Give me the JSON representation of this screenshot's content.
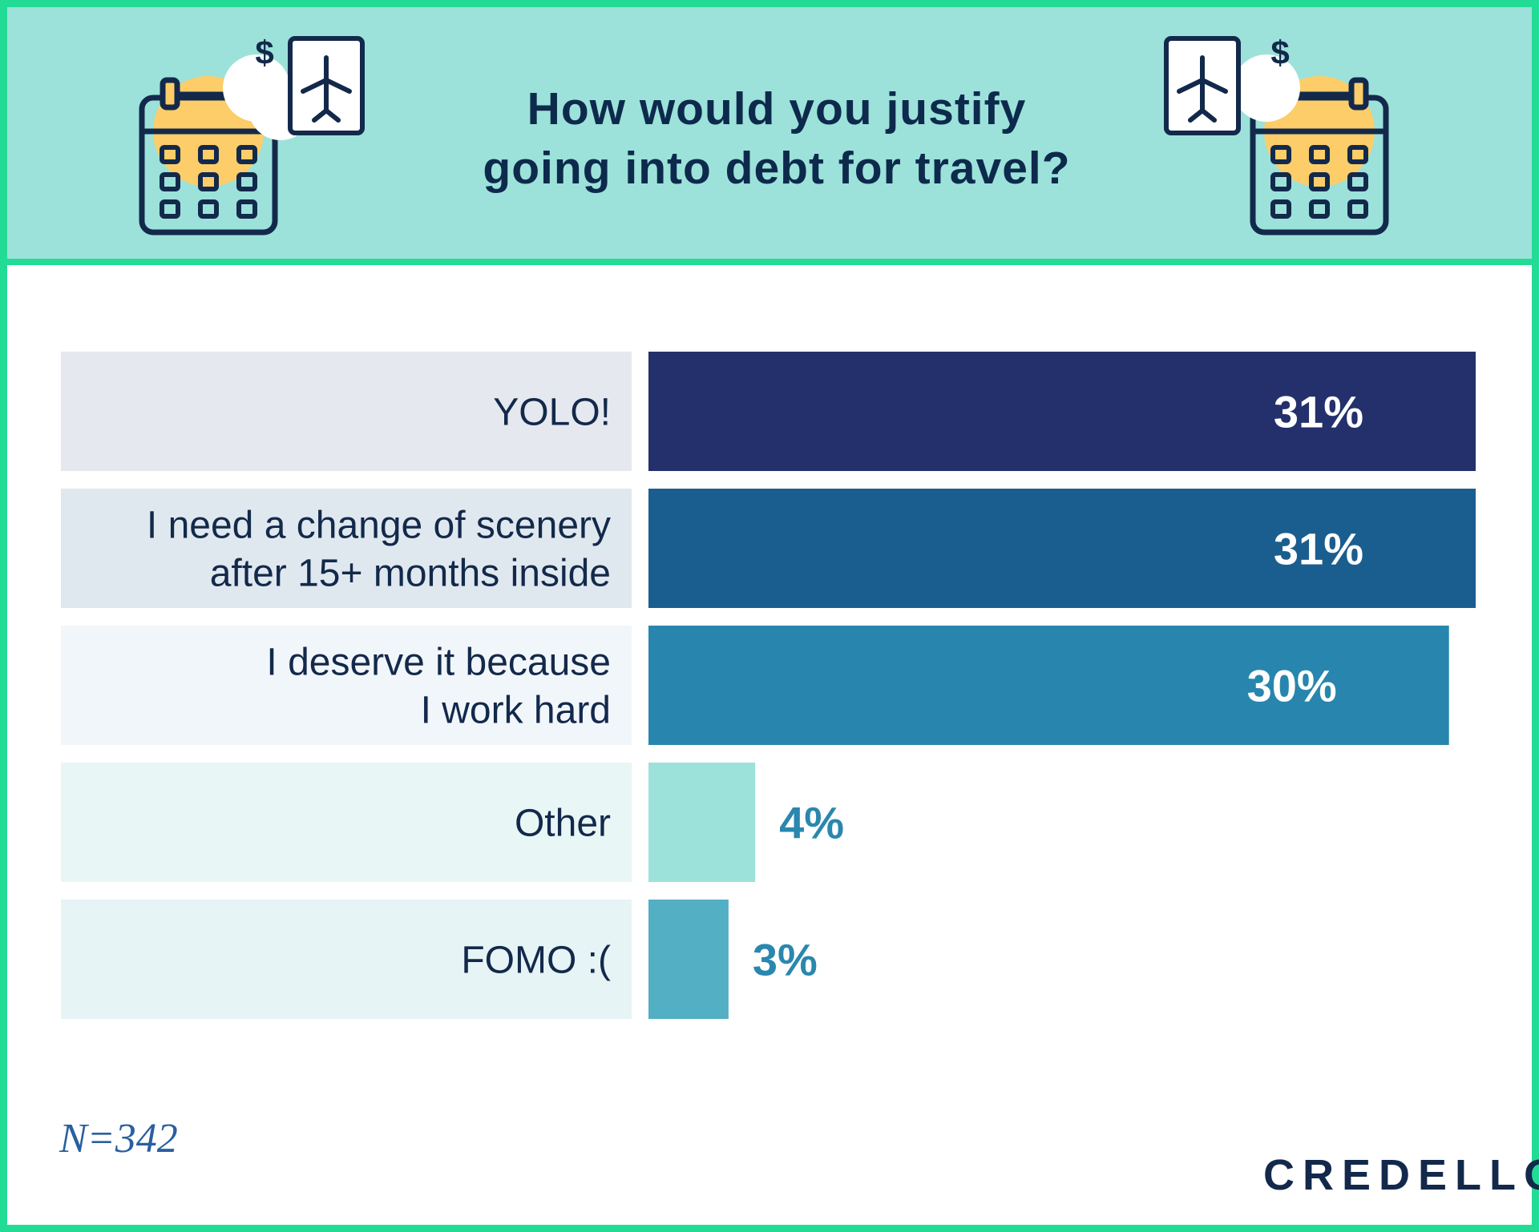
{
  "title": "How would you justify\ngoing into debt for travel?",
  "icons": {
    "left": [
      "calendar-icon",
      "dollar-icon",
      "airplane-icon"
    ],
    "right": [
      "calendar-icon",
      "dollar-icon",
      "airplane-icon"
    ]
  },
  "colors": {
    "header_bg": "#9ce2da",
    "frame_accent": "#22dc96",
    "navy": "#0d2a4c",
    "calendar_fill": "#fccd68"
  },
  "chart_data": {
    "type": "bar",
    "orientation": "horizontal",
    "title": "How would you justify going into debt for travel?",
    "categories": [
      "YOLO!",
      "I need a change of scenery after 15+ months inside",
      "I deserve it because I work hard",
      "Other",
      "FOMO :("
    ],
    "category_lines": [
      [
        "YOLO!"
      ],
      [
        "I need a change of scenery",
        "after 15+ months inside"
      ],
      [
        "I deserve it because",
        "I work hard"
      ],
      [
        "Other"
      ],
      [
        "FOMO :("
      ]
    ],
    "values": [
      31,
      31,
      30,
      4,
      3
    ],
    "value_labels": [
      "31%",
      "31%",
      "30%",
      "4%",
      "3%"
    ],
    "unit": "%",
    "bar_colors": [
      "#23306b",
      "#1a5e90",
      "#2886ae",
      "#9ce2da",
      "#53afc3"
    ],
    "label_bg_colors": [
      "#e5e8ef",
      "#e0e8ef",
      "#f1f6fa",
      "#e8f6f5",
      "#e6f4f5"
    ],
    "xlim": [
      0,
      31
    ],
    "grid": false,
    "legend": "none"
  },
  "footer": {
    "sample_size": "N=342",
    "brand": "CREDELLO"
  }
}
